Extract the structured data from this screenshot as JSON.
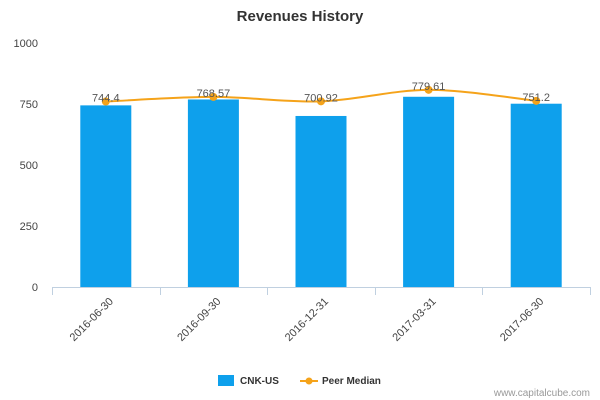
{
  "chart_data": {
    "type": "bar",
    "title": "Revenues History",
    "xlabel": "",
    "ylabel": "",
    "categories": [
      "2016-06-30",
      "2016-09-30",
      "2016-12-31",
      "2017-03-31",
      "2017-06-30"
    ],
    "ylim": [
      0,
      1000
    ],
    "yticks": [
      "0",
      "250",
      "500",
      "750",
      "1000"
    ],
    "grid": false,
    "legend_position": "bottom-center",
    "series": [
      {
        "name": "CNK-US",
        "type": "bar",
        "color": "#0ea0ec",
        "values": [
          744.4,
          768.57,
          700.92,
          779.61,
          751.2
        ],
        "labels": [
          "744.4",
          "768.57",
          "700.92",
          "779.61",
          "751.2"
        ]
      },
      {
        "name": "Peer Median",
        "type": "line",
        "color": "#f5a31a",
        "values": [
          760,
          779,
          761,
          808,
          763
        ]
      }
    ]
  },
  "credit": "www.capitalcube.com"
}
